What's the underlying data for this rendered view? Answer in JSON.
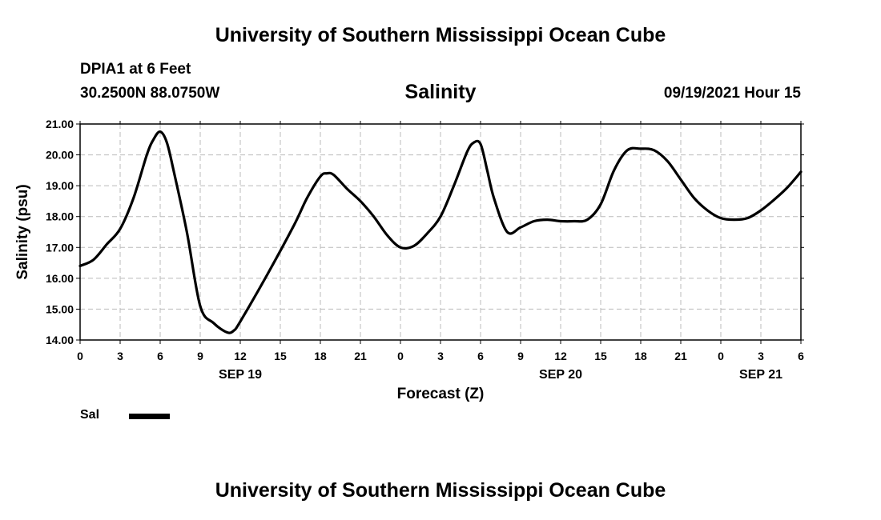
{
  "header": {
    "title": "University of Southern Mississippi Ocean Cube",
    "station": "DPIA1 at 6 Feet",
    "coords": "30.2500N  88.0750W",
    "plot_title": "Salinity",
    "datetime": "09/19/2021 Hour 15"
  },
  "footer": {
    "title": "University of Southern Mississippi Ocean Cube"
  },
  "legend": {
    "label": "Sal"
  },
  "colors": {
    "line": "#000000",
    "grid": "#bbbbbb"
  },
  "chart_data": {
    "type": "line",
    "title": "Salinity",
    "xlabel": "Forecast (Z)",
    "ylabel": "Salinity (psu)",
    "xlim": [
      0,
      54
    ],
    "ylim": [
      14.0,
      21.0
    ],
    "grid": true,
    "legend_position": "bottom-left",
    "y_ticks": [
      "14.00",
      "15.00",
      "16.00",
      "17.00",
      "18.00",
      "19.00",
      "20.00",
      "21.00"
    ],
    "x_ticks": [
      "0",
      "3",
      "6",
      "9",
      "12",
      "15",
      "18",
      "21",
      "0",
      "3",
      "6",
      "9",
      "12",
      "15",
      "18",
      "21",
      "0",
      "3",
      "6"
    ],
    "day_labels": [
      {
        "label": "SEP 19",
        "x": 12
      },
      {
        "label": "SEP 20",
        "x": 36
      },
      {
        "label": "SEP 21",
        "x": 51
      }
    ],
    "series": [
      {
        "name": "Sal",
        "x": [
          0,
          1,
          2,
          3,
          4,
          5,
          5.5,
          6,
          6.5,
          7,
          8,
          9,
          10,
          11,
          11.5,
          12,
          14,
          16,
          17,
          18,
          18.5,
          19,
          20,
          21,
          22,
          23,
          24,
          25,
          26,
          27,
          28,
          29,
          29.5,
          30,
          30.5,
          31,
          32,
          33,
          34,
          35,
          36,
          37,
          38,
          39,
          40,
          41,
          42,
          43,
          44,
          45,
          46,
          47,
          48,
          49,
          50,
          51,
          52,
          53,
          54
        ],
        "values": [
          16.4,
          16.6,
          17.1,
          17.6,
          18.6,
          20.0,
          20.5,
          20.75,
          20.4,
          19.5,
          17.5,
          15.1,
          14.55,
          14.25,
          14.3,
          14.6,
          16.1,
          17.7,
          18.6,
          19.3,
          19.4,
          19.35,
          18.9,
          18.5,
          18.0,
          17.4,
          17.0,
          17.05,
          17.45,
          18.0,
          19.0,
          20.1,
          20.4,
          20.35,
          19.5,
          18.6,
          17.5,
          17.65,
          17.85,
          17.9,
          17.85,
          17.85,
          17.9,
          18.4,
          19.5,
          20.15,
          20.2,
          20.15,
          19.8,
          19.2,
          18.6,
          18.2,
          17.95,
          17.9,
          17.95,
          18.2,
          18.55,
          18.95,
          19.45
        ]
      }
    ]
  }
}
